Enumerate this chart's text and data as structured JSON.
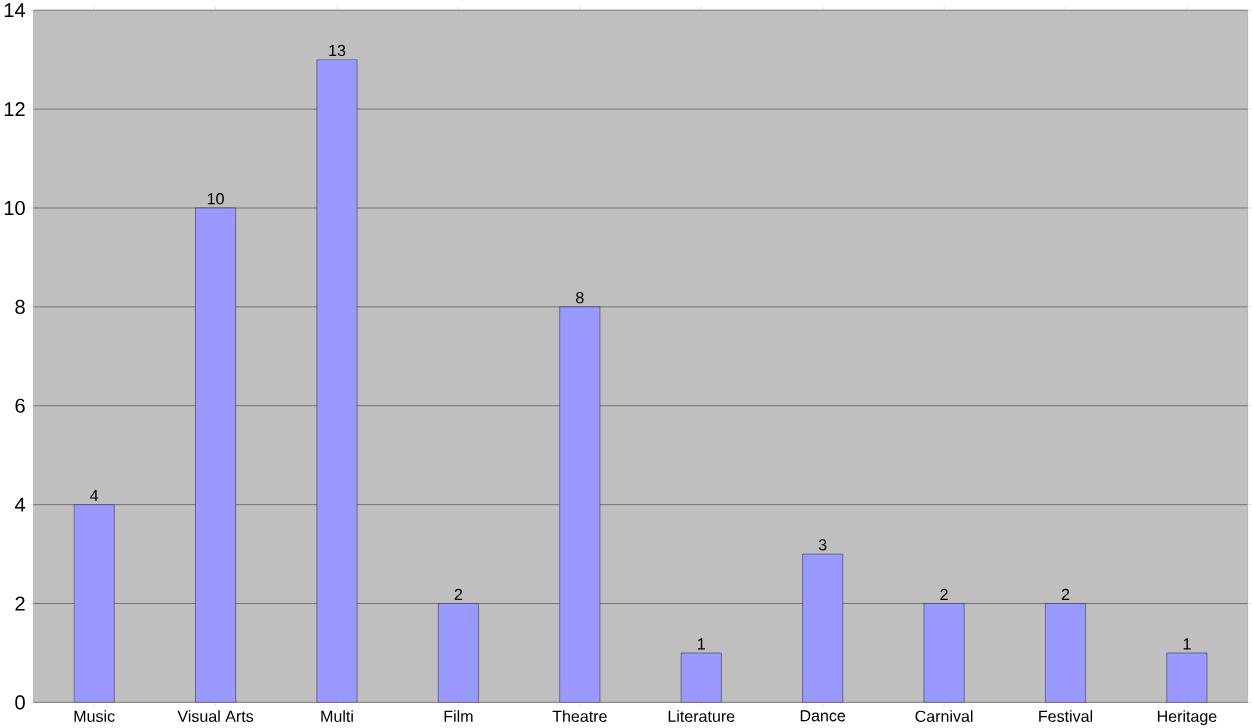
{
  "chart_data": {
    "type": "bar",
    "categories": [
      "Music",
      "Visual Arts",
      "Multi",
      "Film",
      "Theatre",
      "Literature",
      "Dance",
      "Carnival",
      "Festival",
      "Heritage"
    ],
    "values": [
      4,
      10,
      13,
      2,
      8,
      1,
      3,
      2,
      2,
      1
    ],
    "color": "#9999ff",
    "ylim": [
      0,
      14
    ],
    "yticks": [
      0,
      2,
      4,
      6,
      8,
      10,
      12,
      14
    ],
    "grid": "y",
    "data_labels": true
  }
}
